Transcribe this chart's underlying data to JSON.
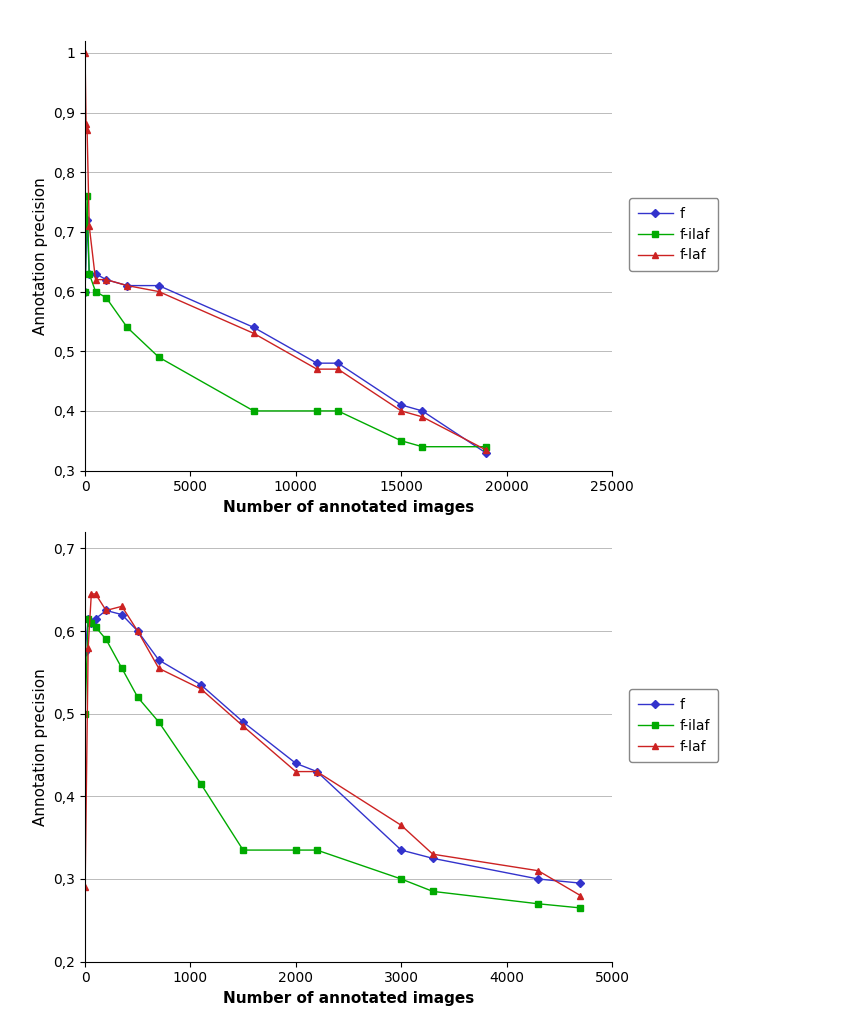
{
  "top_chart": {
    "xlabel": "Number of annotated images",
    "ylabel": "Annotation precision",
    "xlim": [
      0,
      25000
    ],
    "ylim": [
      0.3,
      1.02
    ],
    "yticks": [
      0.3,
      0.4,
      0.5,
      0.6,
      0.7,
      0.8,
      0.9,
      1.0
    ],
    "xticks": [
      0,
      5000,
      10000,
      15000,
      20000,
      25000
    ],
    "series": {
      "f": {
        "x": [
          1,
          100,
          200,
          500,
          1000,
          2000,
          3500,
          8000,
          11000,
          12000,
          15000,
          16000,
          19000
        ],
        "y": [
          0.6,
          0.72,
          0.63,
          0.63,
          0.62,
          0.61,
          0.61,
          0.54,
          0.48,
          0.48,
          0.41,
          0.4,
          0.33
        ],
        "color": "#3333CC",
        "marker": "D",
        "label": "f"
      },
      "f-ilaf": {
        "x": [
          1,
          100,
          200,
          500,
          1000,
          2000,
          3500,
          8000,
          11000,
          12000,
          15000,
          16000,
          19000
        ],
        "y": [
          0.6,
          0.76,
          0.63,
          0.6,
          0.59,
          0.54,
          0.49,
          0.4,
          0.4,
          0.4,
          0.35,
          0.34,
          0.34
        ],
        "color": "#00AA00",
        "marker": "s",
        "label": "f-ilaf"
      },
      "f-laf": {
        "x": [
          1,
          50,
          100,
          200,
          500,
          1000,
          2000,
          3500,
          8000,
          11000,
          12000,
          15000,
          16000,
          19000
        ],
        "y": [
          1.0,
          0.88,
          0.87,
          0.71,
          0.62,
          0.62,
          0.61,
          0.6,
          0.53,
          0.47,
          0.47,
          0.4,
          0.39,
          0.335
        ],
        "color": "#CC2222",
        "marker": "^",
        "label": "f-laf"
      }
    }
  },
  "bottom_chart": {
    "xlabel": "Number of annotated images",
    "ylabel": "Annotation precision",
    "xlim": [
      0,
      5000
    ],
    "ylim": [
      0.2,
      0.72
    ],
    "yticks": [
      0.2,
      0.3,
      0.4,
      0.5,
      0.6,
      0.7
    ],
    "xticks": [
      0,
      1000,
      2000,
      3000,
      4000,
      5000
    ],
    "series": {
      "f": {
        "x": [
          1,
          30,
          60,
          100,
          200,
          350,
          500,
          700,
          1100,
          1500,
          2000,
          2200,
          3000,
          3300,
          4300,
          4700
        ],
        "y": [
          0.575,
          0.615,
          0.61,
          0.615,
          0.625,
          0.62,
          0.6,
          0.565,
          0.535,
          0.49,
          0.44,
          0.43,
          0.335,
          0.325,
          0.3,
          0.295
        ],
        "color": "#3333CC",
        "marker": "D",
        "label": "f"
      },
      "f-ilaf": {
        "x": [
          1,
          30,
          60,
          100,
          200,
          350,
          500,
          700,
          1100,
          1500,
          2000,
          2200,
          3000,
          3300,
          4300,
          4700
        ],
        "y": [
          0.5,
          0.615,
          0.61,
          0.605,
          0.59,
          0.555,
          0.52,
          0.49,
          0.415,
          0.335,
          0.335,
          0.335,
          0.3,
          0.285,
          0.27,
          0.265
        ],
        "color": "#00AA00",
        "marker": "s",
        "label": "f-ilaf"
      },
      "f-laf": {
        "x": [
          1,
          30,
          60,
          100,
          200,
          350,
          500,
          700,
          1100,
          1500,
          2000,
          2200,
          3000,
          3300,
          4300,
          4700
        ],
        "y": [
          0.29,
          0.58,
          0.645,
          0.645,
          0.625,
          0.63,
          0.6,
          0.555,
          0.53,
          0.485,
          0.43,
          0.43,
          0.365,
          0.33,
          0.31,
          0.28
        ],
        "color": "#CC2222",
        "marker": "^",
        "label": "f-laf"
      }
    }
  },
  "background_color": "#ffffff",
  "grid_color": "#bbbbbb",
  "font_size": 10,
  "label_font_size": 11,
  "tick_font_size": 10
}
